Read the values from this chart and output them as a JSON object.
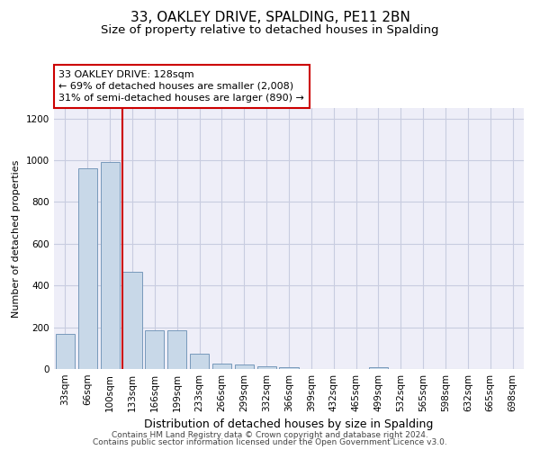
{
  "title1": "33, OAKLEY DRIVE, SPALDING, PE11 2BN",
  "title2": "Size of property relative to detached houses in Spalding",
  "xlabel": "Distribution of detached houses by size in Spalding",
  "ylabel": "Number of detached properties",
  "categories": [
    "33sqm",
    "66sqm",
    "100sqm",
    "133sqm",
    "166sqm",
    "199sqm",
    "233sqm",
    "266sqm",
    "299sqm",
    "332sqm",
    "366sqm",
    "399sqm",
    "432sqm",
    "465sqm",
    "499sqm",
    "532sqm",
    "565sqm",
    "598sqm",
    "632sqm",
    "665sqm",
    "698sqm"
  ],
  "values": [
    170,
    960,
    990,
    465,
    185,
    185,
    75,
    25,
    20,
    15,
    10,
    0,
    0,
    0,
    10,
    0,
    0,
    0,
    0,
    0,
    0
  ],
  "bar_color": "#c8d8e8",
  "bar_edge_color": "#7799bb",
  "red_line_index": 3,
  "annotation_line1": "33 OAKLEY DRIVE: 128sqm",
  "annotation_line2": "← 69% of detached houses are smaller (2,008)",
  "annotation_line3": "31% of semi-detached houses are larger (890) →",
  "annotation_box_color": "white",
  "annotation_box_edge_color": "#cc0000",
  "red_line_color": "#cc0000",
  "ylim": [
    0,
    1250
  ],
  "yticks": [
    0,
    200,
    400,
    600,
    800,
    1000,
    1200
  ],
  "grid_color": "#c8cce0",
  "bg_color": "#eeeef8",
  "footer1": "Contains HM Land Registry data © Crown copyright and database right 2024.",
  "footer2": "Contains public sector information licensed under the Open Government Licence v3.0.",
  "title1_fontsize": 11,
  "title2_fontsize": 9.5,
  "xlabel_fontsize": 9,
  "ylabel_fontsize": 8,
  "annot_fontsize": 8,
  "tick_fontsize": 7.5,
  "footer_fontsize": 6.5
}
